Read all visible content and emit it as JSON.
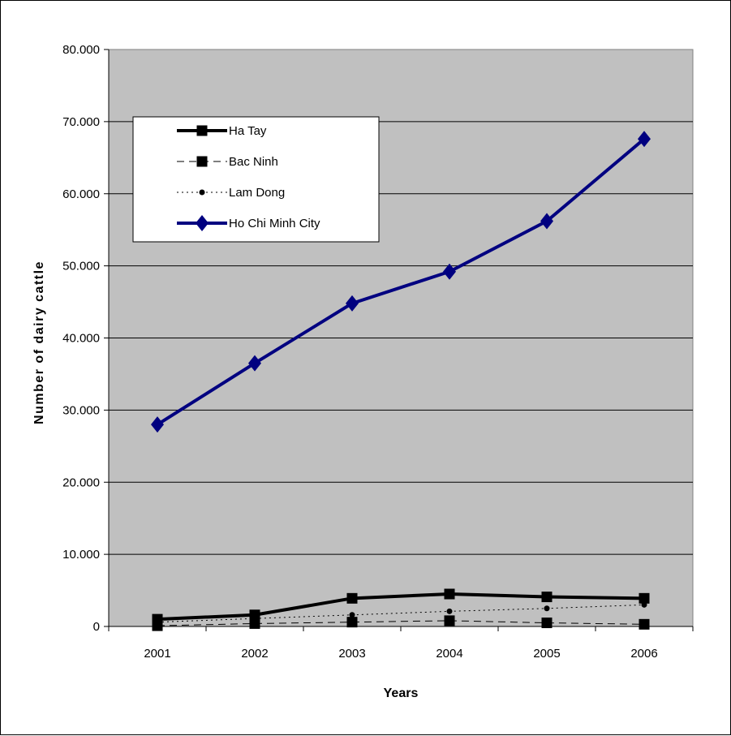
{
  "chart_data": {
    "type": "line",
    "title": "",
    "xlabel": "Years",
    "ylabel": "Number of dairy cattle",
    "categories": [
      "2001",
      "2002",
      "2003",
      "2004",
      "2005",
      "2006"
    ],
    "ylim": [
      0,
      80000
    ],
    "yticks": [
      0,
      10000,
      20000,
      30000,
      40000,
      50000,
      60000,
      70000,
      80000
    ],
    "ytick_labels": [
      "0",
      "10.000",
      "20.000",
      "30.000",
      "40.000",
      "50.000",
      "60.000",
      "70.000",
      "80.000"
    ],
    "grid": true,
    "plot_background": "#c0c0c0",
    "legend_position": "top-left",
    "series": [
      {
        "name": "Ha Tay",
        "values": [
          1000,
          1600,
          3900,
          4500,
          4100,
          3900
        ],
        "color": "#000000",
        "style": "solid-thick",
        "marker": "square"
      },
      {
        "name": "Bac Ninh",
        "values": [
          100,
          400,
          600,
          800,
          500,
          300
        ],
        "color": "#000000",
        "style": "dashed",
        "marker": "square"
      },
      {
        "name": "Lam Dong",
        "values": [
          600,
          1100,
          1600,
          2100,
          2500,
          3000
        ],
        "color": "#000000",
        "style": "dotted",
        "marker": "circle"
      },
      {
        "name": "Ho Chi Minh City",
        "values": [
          28000,
          36500,
          44800,
          49200,
          56200,
          67600
        ],
        "color": "#000080",
        "style": "solid-thick",
        "marker": "diamond"
      }
    ]
  }
}
